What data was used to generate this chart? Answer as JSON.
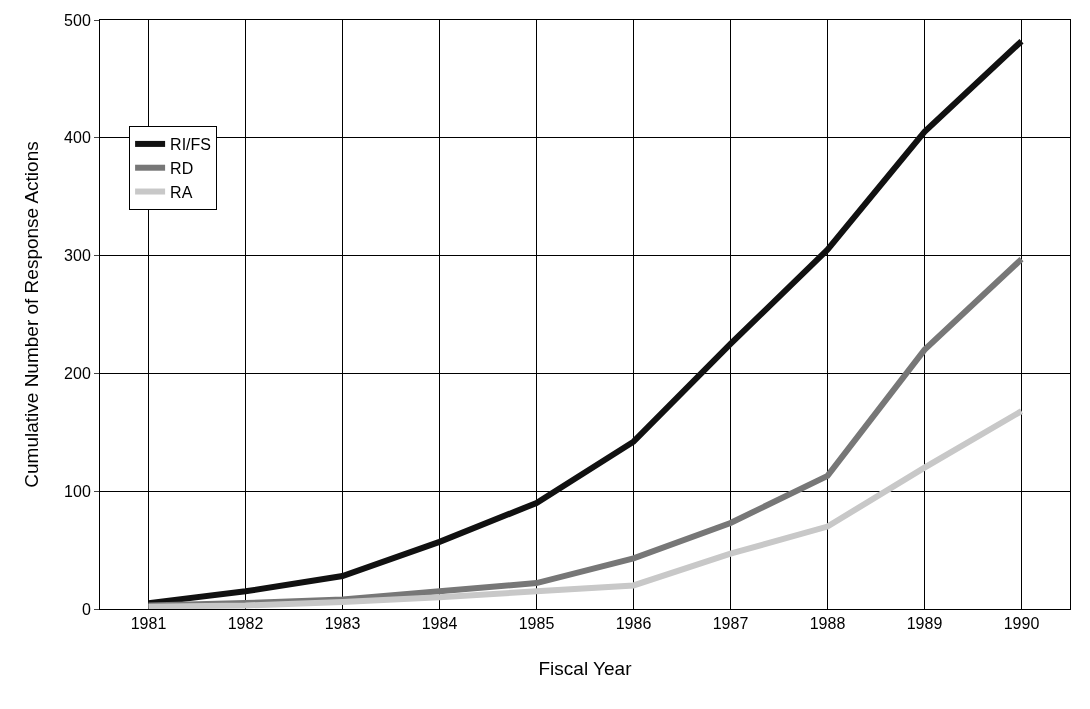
{
  "chart_data": {
    "type": "line",
    "xlabel": "Fiscal Year",
    "ylabel": "Cumulative Number of Response Actions",
    "categories": [
      "1981",
      "1982",
      "1983",
      "1984",
      "1985",
      "1986",
      "1987",
      "1988",
      "1989",
      "1990"
    ],
    "series": [
      {
        "name": "RI/FS",
        "color": "#111111",
        "values": [
          5,
          15,
          28,
          57,
          90,
          142,
          225,
          305,
          405,
          482
        ]
      },
      {
        "name": "RD",
        "color": "#777777",
        "values": [
          3,
          5,
          8,
          15,
          22,
          43,
          73,
          113,
          220,
          297
        ]
      },
      {
        "name": "RA",
        "color": "#c8c8c8",
        "values": [
          2,
          3,
          6,
          10,
          15,
          20,
          47,
          70,
          120,
          168
        ]
      }
    ],
    "ylim": [
      0,
      500
    ],
    "yticks": [
      0,
      100,
      200,
      300,
      400,
      500
    ],
    "grid": true,
    "legend": "top left",
    "marker": "none",
    "line_style": "solid"
  }
}
